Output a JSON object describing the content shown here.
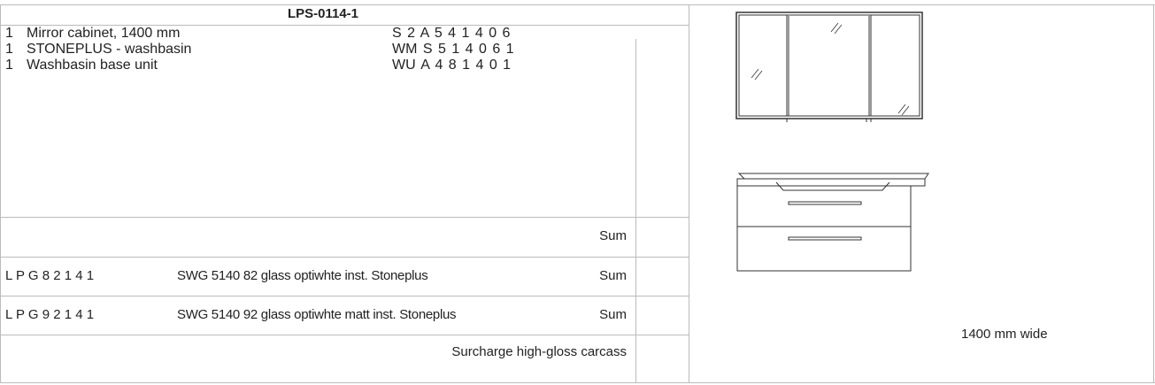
{
  "header": {
    "title": "LPS-0114-1"
  },
  "items": [
    {
      "qty": "1",
      "name": "Mirror cabinet, 1400 mm",
      "code": "S 2 A 5 4 1 4 0 6"
    },
    {
      "qty": "1",
      "name": "STONEPLUS - washbasin",
      "code": "WM S 5 1 4 0 6 1"
    },
    {
      "qty": "1",
      "name": "Washbasin base unit",
      "code": "WU A 4 8 1 4 0 1"
    }
  ],
  "rows": [
    {
      "code": "",
      "description": "",
      "label": "Sum"
    },
    {
      "code": "L P G 8 2 1 4 1",
      "description": "SWG 5140 82 glass optiwhte inst. Stoneplus",
      "label": "Sum"
    },
    {
      "code": "L P G 9 2 1 4 1",
      "description": "SWG 5140 92 glass optiwhte matt inst. Stoneplus",
      "label": "Sum"
    },
    {
      "code": "",
      "description": "",
      "label": "Surcharge high-gloss carcass"
    }
  ],
  "image": {
    "caption": "1400 mm wide"
  }
}
